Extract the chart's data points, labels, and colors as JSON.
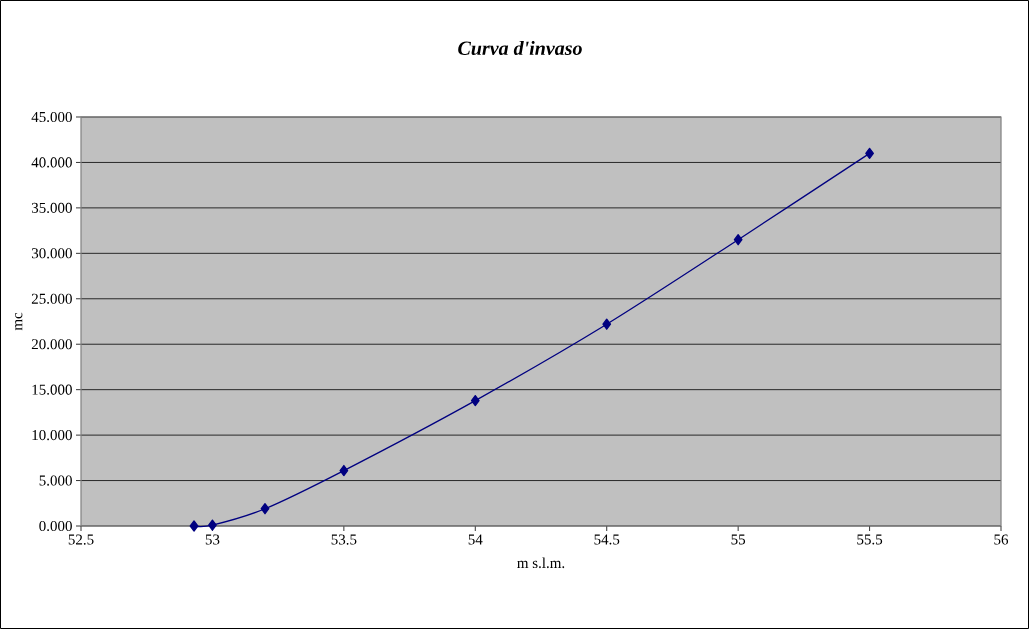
{
  "chart_data": {
    "type": "line",
    "title": "Curva d'invaso",
    "xlabel": "m s.l.m.",
    "ylabel": "mc",
    "series": [
      {
        "color": "#000080",
        "x": [
          52.93,
          53,
          53.2,
          53.5,
          54,
          54.5,
          55,
          55.5
        ],
        "values": [
          0,
          0.1,
          1.9,
          6.1,
          13.8,
          22.2,
          31.5,
          41.0
        ]
      }
    ],
    "xlim": [
      52.5,
      56
    ],
    "xticks": [
      52.5,
      53,
      53.5,
      54,
      54.5,
      55,
      55.5,
      56
    ],
    "ylim": [
      0,
      45
    ],
    "yticks": [
      {
        "value": 0,
        "label": "0.000"
      },
      {
        "value": 5,
        "label": "5.000"
      },
      {
        "value": 10,
        "label": "10.000"
      },
      {
        "value": 15,
        "label": "15.000"
      },
      {
        "value": 20,
        "label": "20.000"
      },
      {
        "value": 25,
        "label": "25.000"
      },
      {
        "value": 30,
        "label": "30.000"
      },
      {
        "value": 35,
        "label": "35.000"
      },
      {
        "value": 40,
        "label": "40.000"
      },
      {
        "value": 45,
        "label": "45.000"
      }
    ],
    "grid": "y",
    "marker": "diamond",
    "line_style": "solid"
  }
}
